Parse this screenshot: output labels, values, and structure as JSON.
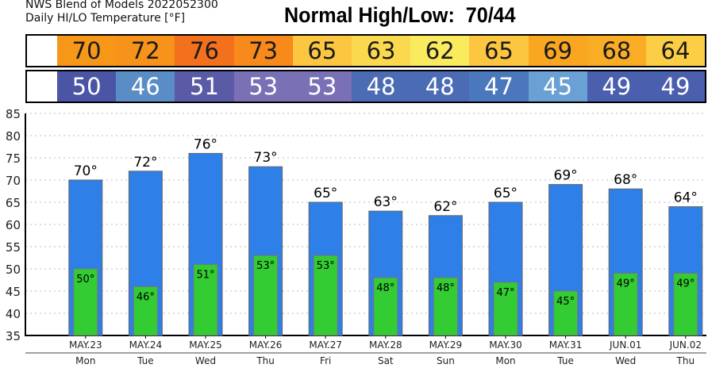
{
  "header": {
    "line1": "NWS Blend of Models 2022052300",
    "line2": "Daily HI/LO Temperature [°F]",
    "normal_label": "Normal High/Low:  70/44"
  },
  "hi_strip": {
    "cells": [
      {
        "value": "70",
        "color": "#f79718"
      },
      {
        "value": "72",
        "color": "#f7921a"
      },
      {
        "value": "76",
        "color": "#f3711c"
      },
      {
        "value": "73",
        "color": "#f78a1b"
      },
      {
        "value": "65",
        "color": "#fcc640"
      },
      {
        "value": "63",
        "color": "#fbd94f"
      },
      {
        "value": "62",
        "color": "#faea5e"
      },
      {
        "value": "65",
        "color": "#fcc640"
      },
      {
        "value": "69",
        "color": "#f9a620"
      },
      {
        "value": "68",
        "color": "#f9ad25"
      },
      {
        "value": "64",
        "color": "#fcce45"
      }
    ]
  },
  "lo_strip": {
    "cells": [
      {
        "value": "50",
        "color": "#4a55a5"
      },
      {
        "value": "46",
        "color": "#5a8dc5"
      },
      {
        "value": "51",
        "color": "#5a5aa7"
      },
      {
        "value": "53",
        "color": "#7a70b6"
      },
      {
        "value": "53",
        "color": "#7a70b6"
      },
      {
        "value": "48",
        "color": "#4b6cb5"
      },
      {
        "value": "48",
        "color": "#4b6cb5"
      },
      {
        "value": "47",
        "color": "#4b78bc"
      },
      {
        "value": "45",
        "color": "#6aa0d3"
      },
      {
        "value": "49",
        "color": "#4a5fae"
      },
      {
        "value": "49",
        "color": "#4a5fae"
      }
    ]
  },
  "colors": {
    "high_bar": "#2e7fe8",
    "low_bar": "#33cc33",
    "gridline": "#bbbbbb"
  },
  "chart_data": {
    "type": "bar",
    "categories": [
      "MAY.23",
      "MAY.24",
      "MAY.25",
      "MAY.26",
      "MAY.27",
      "MAY.28",
      "MAY.29",
      "MAY.30",
      "MAY.31",
      "JUN.01",
      "JUN.02"
    ],
    "days": [
      "Mon",
      "Tue",
      "Wed",
      "Thu",
      "Fri",
      "Sat",
      "Sun",
      "Mon",
      "Tue",
      "Wed",
      "Thu"
    ],
    "series": [
      {
        "values": [
          70,
          72,
          76,
          73,
          65,
          63,
          62,
          65,
          69,
          68,
          64
        ]
      },
      {
        "values": [
          50,
          46,
          51,
          53,
          53,
          48,
          48,
          47,
          45,
          49,
          49
        ]
      }
    ],
    "high_labels": [
      "70°",
      "72°",
      "76°",
      "73°",
      "65°",
      "63°",
      "62°",
      "65°",
      "69°",
      "68°",
      "64°"
    ],
    "low_labels": [
      "50°",
      "46°",
      "51°",
      "53°",
      "53°",
      "48°",
      "48°",
      "47°",
      "45°",
      "49°",
      "49°"
    ],
    "yticks": [
      35,
      40,
      45,
      50,
      55,
      60,
      65,
      70,
      75,
      80,
      85
    ],
    "ylim": [
      35,
      85
    ],
    "grid": true
  }
}
